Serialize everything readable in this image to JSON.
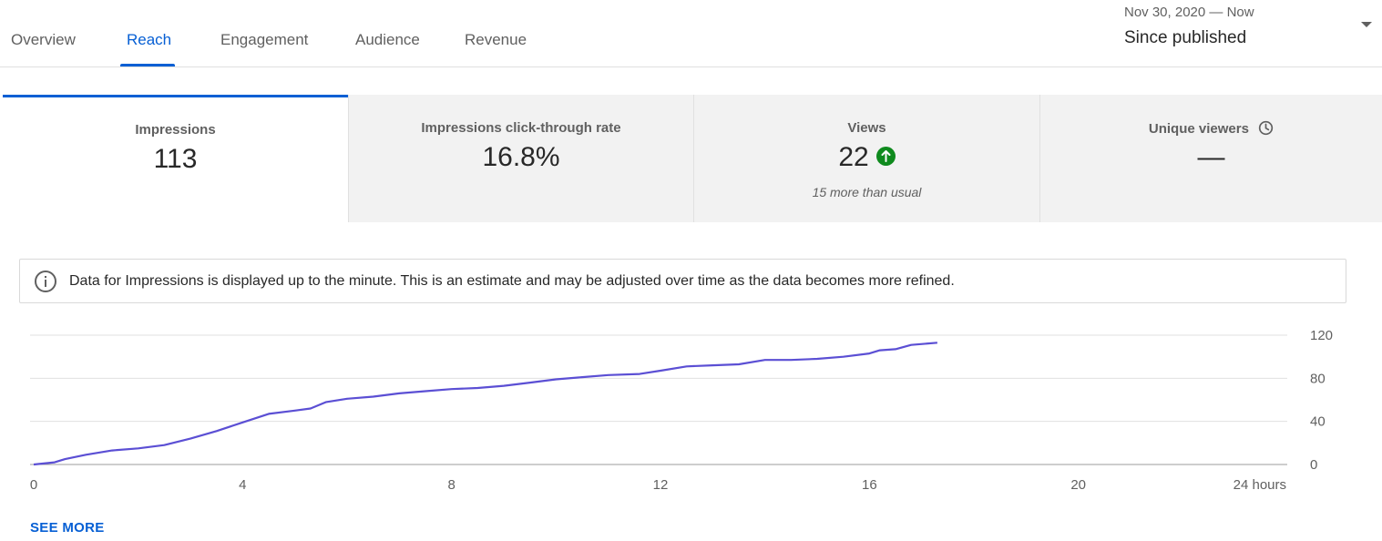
{
  "tabs": [
    {
      "label": "Overview"
    },
    {
      "label": "Reach"
    },
    {
      "label": "Engagement"
    },
    {
      "label": "Audience"
    },
    {
      "label": "Revenue"
    }
  ],
  "active_tab": "Reach",
  "date_range": {
    "sub": "Nov 30, 2020 — Now",
    "label": "Since published"
  },
  "cards": [
    {
      "title": "Impressions",
      "value": "113",
      "note": ""
    },
    {
      "title": "Impressions click-through rate",
      "value": "16.8%",
      "note": ""
    },
    {
      "title": "Views",
      "value": "22",
      "note": "15 more than usual",
      "badge": "arrow-up-icon"
    },
    {
      "title": "Unique viewers",
      "value": "—",
      "note": "",
      "title_icon": "clock-icon"
    }
  ],
  "banner": {
    "icon": "info-icon",
    "text": "Data for Impressions is displayed up to the minute. This is an estimate and may be adjusted over time as the data becomes more refined."
  },
  "colors": {
    "accent": "#065fd4",
    "line": "#5b4fd4",
    "positive": "#0f8a1e"
  },
  "chart_data": {
    "type": "line",
    "xlabel": "",
    "ylabel": "",
    "x_ticks": [
      "0",
      "4",
      "8",
      "12",
      "16",
      "20",
      "24 hours"
    ],
    "y_ticks": [
      "0",
      "40",
      "80",
      "120"
    ],
    "xlim": [
      0,
      24
    ],
    "ylim": [
      0,
      120
    ],
    "grid": true,
    "series": [
      {
        "x": [
          0,
          0.4,
          0.6,
          1.0,
          1.5,
          2.0,
          2.5,
          3.0,
          3.5,
          4.0,
          4.5,
          5.0,
          5.3,
          5.6,
          6.0,
          6.5,
          7.0,
          7.5,
          8.0,
          8.5,
          9.0,
          9.5,
          10.0,
          10.5,
          11.0,
          11.6,
          12.0,
          12.5,
          13.0,
          13.5,
          14.0,
          14.5,
          15.0,
          15.5,
          16.0,
          16.2,
          16.5,
          16.8,
          17.3
        ],
        "y": [
          0,
          2,
          5,
          9,
          13,
          15,
          18,
          24,
          31,
          39,
          47,
          50,
          52,
          58,
          61,
          63,
          66,
          68,
          70,
          71,
          73,
          76,
          79,
          81,
          83,
          84,
          87,
          91,
          92,
          93,
          97,
          97,
          98,
          100,
          103,
          106,
          107,
          111,
          113
        ]
      }
    ]
  },
  "see_more": "SEE MORE"
}
